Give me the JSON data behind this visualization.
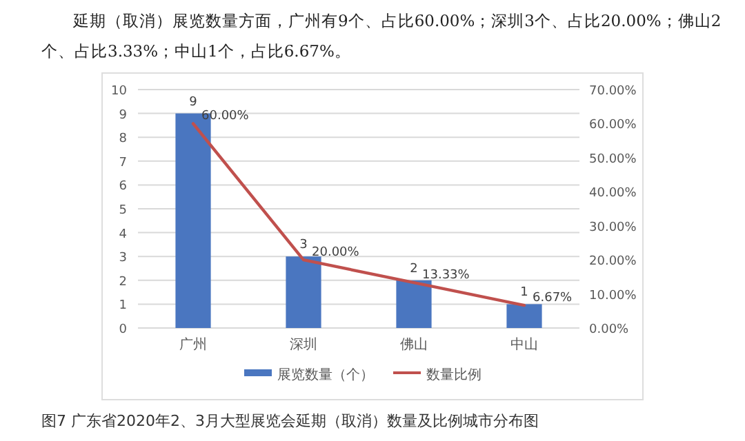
{
  "chart_data": {
    "type": "bar",
    "categories": [
      "广州",
      "深圳",
      "佛山",
      "中山"
    ],
    "series": [
      {
        "name": "展览数量（个）",
        "color": "#4a76c0",
        "values": [
          9,
          3,
          2,
          1
        ],
        "value_labels": [
          "9",
          "3",
          "2",
          "1"
        ]
      },
      {
        "name": "数量比例",
        "type": "line",
        "axis": "y2",
        "color": "#c0504d",
        "values": [
          60,
          20,
          13.33,
          6.67
        ],
        "value_labels": [
          "60.00%",
          "20.00%",
          "13.33%",
          "6.67%"
        ]
      }
    ],
    "ylim": [
      0,
      10
    ],
    "yticks": [
      0,
      1,
      2,
      3,
      4,
      5,
      6,
      7,
      8,
      9,
      10
    ],
    "y2lim": [
      0,
      70
    ],
    "y2ticks": [
      {
        "value": 0,
        "label": "0.00%"
      },
      {
        "value": 10,
        "label": "10.00%"
      },
      {
        "value": 20,
        "label": "20.00%"
      },
      {
        "value": 30,
        "label": "30.00%"
      },
      {
        "value": 40,
        "label": "40.00%"
      },
      {
        "value": 50,
        "label": "50.00%"
      },
      {
        "value": 60,
        "label": "60.00%"
      },
      {
        "value": 70,
        "label": "70.00%"
      }
    ],
    "grid": "y",
    "legend": "bottom",
    "marker": "none",
    "line_style": "solid",
    "annotations": [
      "延期（取消）展览数量方面，广州有9个、占比60.00%；深圳3个、占比20.00%；佛山2个、占比3.33%；中山1个，占比6.67%。",
      "图7 广东省2020年2、3月大型展览会延期（取消）数量及比例城市分布图"
    ]
  }
}
